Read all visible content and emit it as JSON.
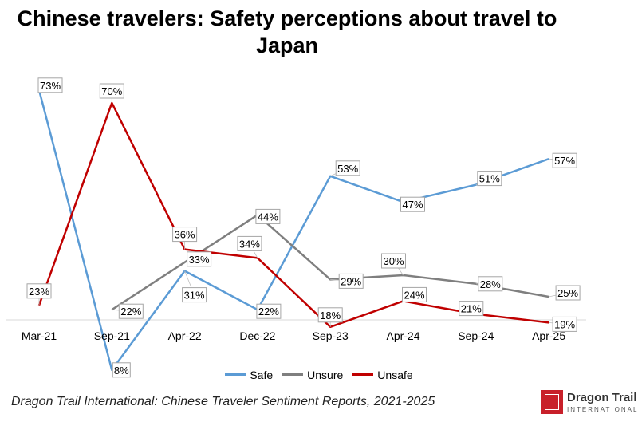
{
  "title": "Chinese travelers: Safety perceptions about travel to Japan",
  "source": "Dragon Trail International: Chinese Traveler Sentiment Reports, 2021-2025",
  "logo": {
    "name": "Dragon Trail",
    "subtitle": "INTERNATIONAL"
  },
  "chart_data": {
    "type": "line",
    "title": "Chinese travelers: Safety perceptions about travel to Japan",
    "categories": [
      "Mar-21",
      "Sep-21",
      "Apr-22",
      "Dec-22",
      "Sep-23",
      "Apr-24",
      "Sep-24",
      "Apr-25"
    ],
    "series": [
      {
        "name": "Safe",
        "color": "#5b9bd5",
        "values": [
          73,
          8,
          31,
          22,
          53,
          47,
          51,
          57
        ]
      },
      {
        "name": "Unsure",
        "color": "#7f7f7f",
        "values": [
          null,
          22,
          33,
          44,
          29,
          30,
          28,
          25
        ]
      },
      {
        "name": "Unsafe",
        "color": "#c00000",
        "values": [
          23,
          70,
          36,
          34,
          18,
          24,
          21,
          19
        ]
      }
    ],
    "value_suffix": "%",
    "ylim": [
      0,
      80
    ],
    "grid": false,
    "legend": "bottom"
  }
}
